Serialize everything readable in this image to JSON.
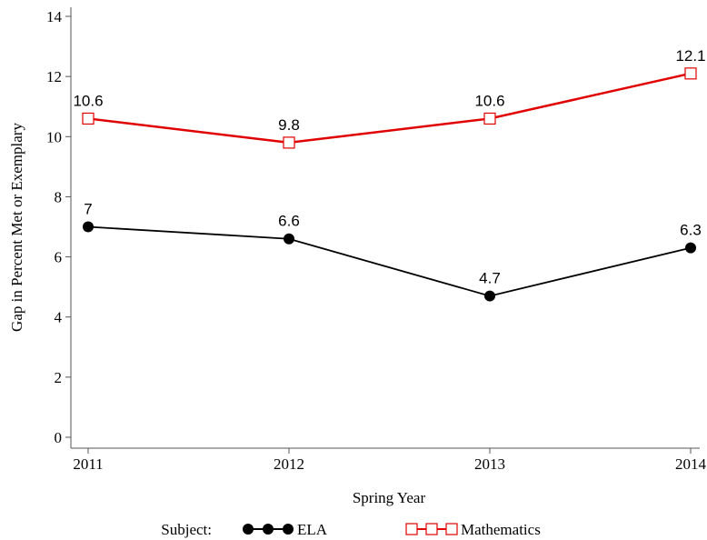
{
  "chart_data": {
    "type": "line",
    "x": [
      2011,
      2012,
      2013,
      2014
    ],
    "xlim": [
      2011,
      2014
    ],
    "xticks": [
      2011,
      2012,
      2013,
      2014
    ],
    "ylim": [
      0,
      14
    ],
    "yticks": [
      0,
      2,
      4,
      6,
      8,
      10,
      12,
      14
    ],
    "x_label": "Spring Year",
    "y_label": "Gap in Percent Met or Exemplary",
    "legend_title": "Subject:",
    "series": [
      {
        "name": "ELA",
        "color": "#000000",
        "marker": "circle",
        "values": [
          7,
          6.6,
          4.7,
          6.3
        ]
      },
      {
        "name": "Mathematics",
        "color": "#e00000",
        "marker": "square",
        "values": [
          10.6,
          9.8,
          10.6,
          12.1
        ]
      }
    ]
  }
}
